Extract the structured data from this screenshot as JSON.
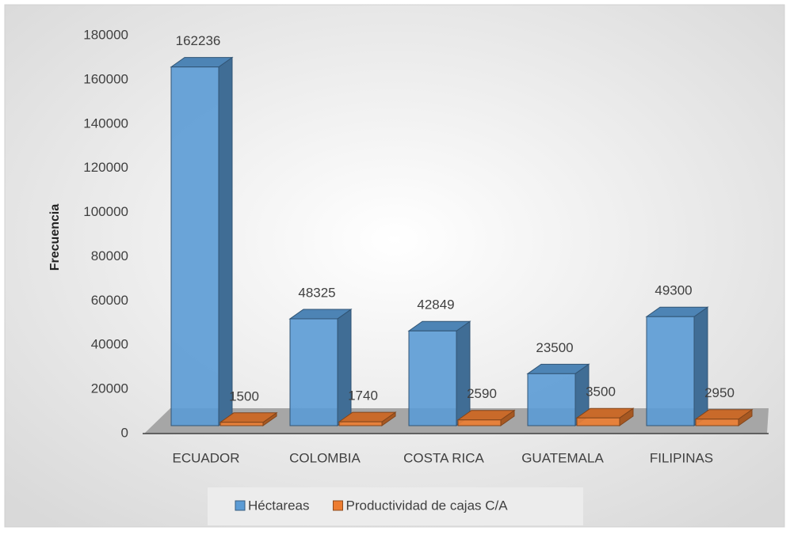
{
  "chart_data": {
    "type": "bar3d",
    "y_axis_label": "Frecuencia",
    "categories": [
      "ECUADOR",
      "COLOMBIA",
      "COSTA RICA",
      "GUATEMALA",
      "FILIPINAS"
    ],
    "series": [
      {
        "name": "Héctareas",
        "color": "#5b9bd5",
        "values": [
          162236,
          48325,
          42849,
          23500,
          49300
        ]
      },
      {
        "name": "Productividad de cajas C/A",
        "color": "#ed7d31",
        "values": [
          1500,
          1740,
          2590,
          3500,
          2950
        ]
      }
    ],
    "ylim": [
      0,
      180000
    ],
    "yticks": [
      0,
      20000,
      40000,
      60000,
      80000,
      100000,
      120000,
      140000,
      160000,
      180000
    ]
  }
}
